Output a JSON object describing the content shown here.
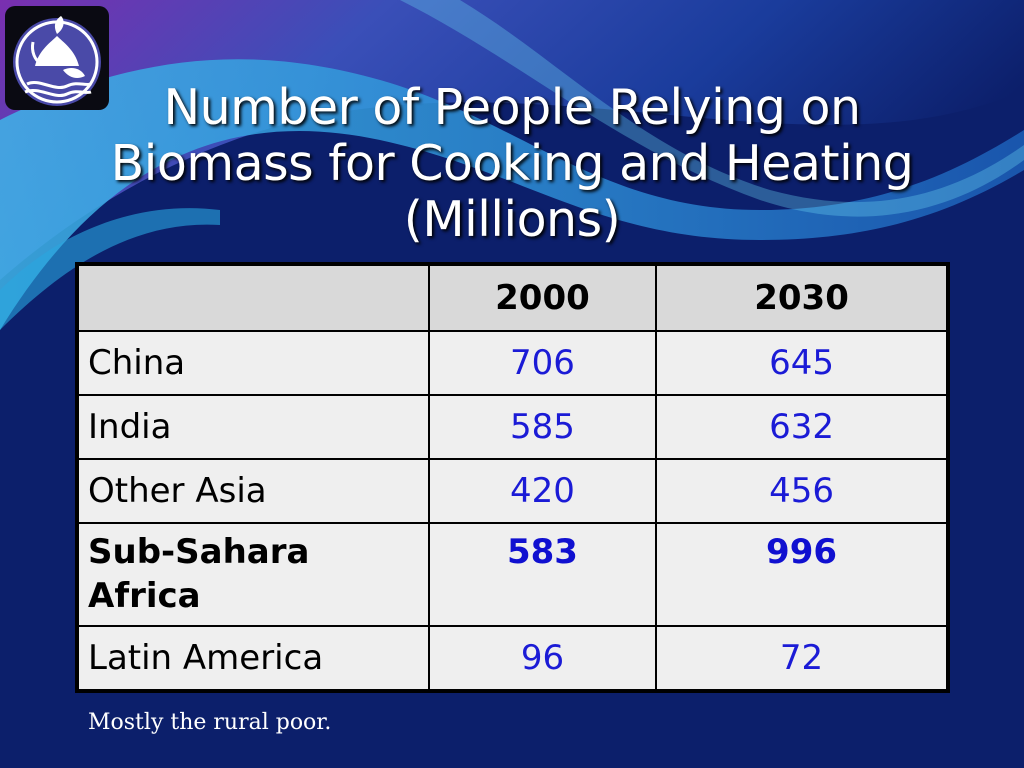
{
  "slide": {
    "title_line1": "Number of People Relying on",
    "title_line2": "Biomass for Cooking and Heating",
    "title_line3": "(Millions)",
    "note": "Mostly the rural poor."
  },
  "table": {
    "headers": [
      "",
      "2000",
      "2030"
    ],
    "rows": [
      {
        "region": "China",
        "y2000": "706",
        "y2030": "645"
      },
      {
        "region": "India",
        "y2000": "585",
        "y2030": "632"
      },
      {
        "region": "Other Asia",
        "y2000": "420",
        "y2030": "456"
      },
      {
        "region_line1": "Sub-Sahara",
        "region_line2": "Africa",
        "y2000": "583",
        "y2030": "996"
      },
      {
        "region": "Latin America",
        "y2000": "96",
        "y2030": "72"
      }
    ]
  },
  "colors": {
    "background": "#0c1f6b",
    "value_text": "#1b1bd6",
    "header_fill": "#d9d9d9",
    "cell_fill": "#efefef"
  },
  "icons": [
    "lotus-logo-icon"
  ]
}
